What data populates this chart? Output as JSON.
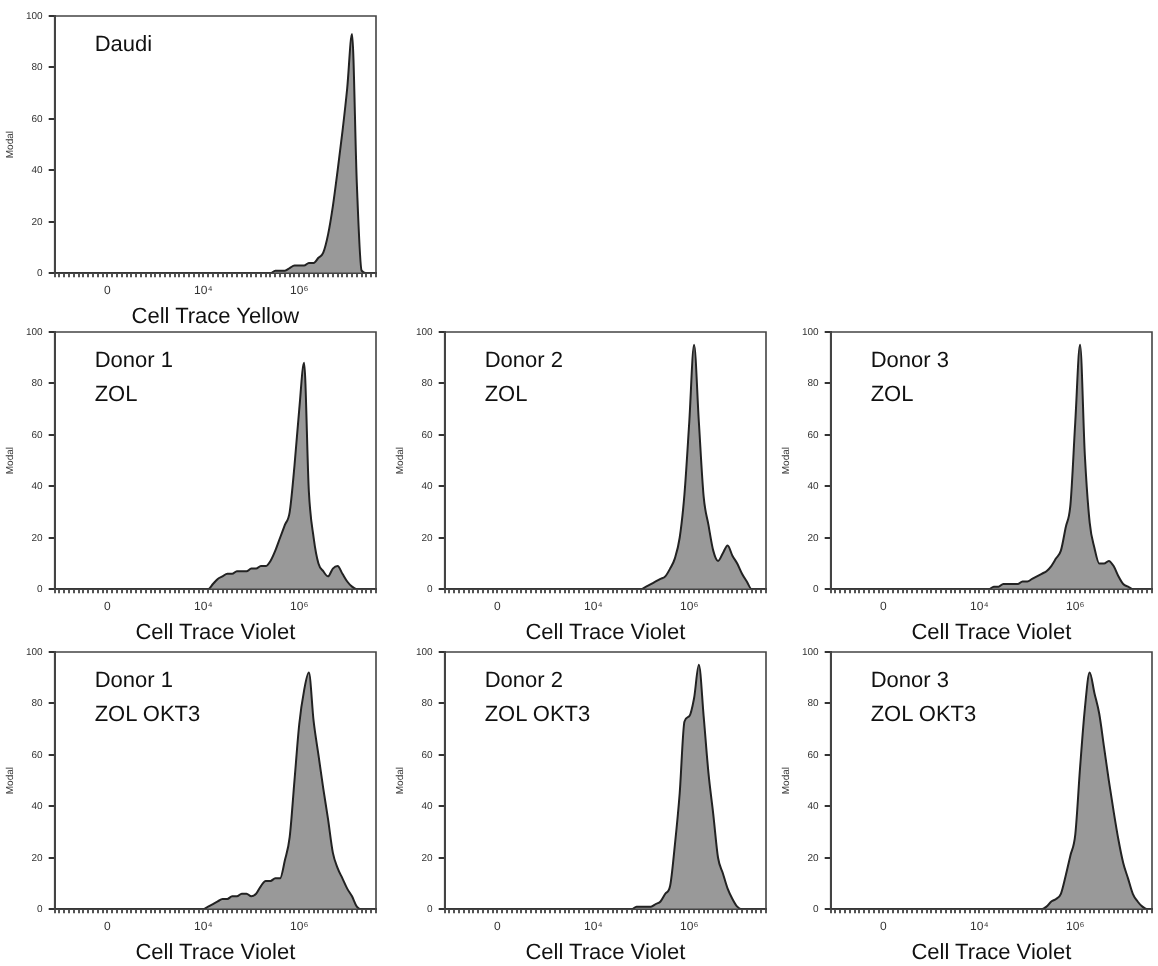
{
  "chart_data": [
    {
      "type": "area",
      "annotations": [
        "Daudi"
      ],
      "xlabel": "Cell Trace Yellow",
      "ylabel": "Modal",
      "ylim": [
        0,
        100
      ],
      "yticks": [
        0,
        20,
        40,
        60,
        80,
        100
      ],
      "color": "#999999",
      "categories": [
        null,
        null,
        null,
        null,
        null,
        null,
        null,
        null,
        null,
        null,
        null,
        "0",
        null,
        null,
        null,
        null,
        null,
        null,
        null,
        null,
        null,
        null,
        null,
        null,
        null,
        null,
        null,
        null,
        null,
        null,
        null,
        "10⁴",
        null,
        null,
        null,
        null,
        null,
        null,
        null,
        null,
        null,
        null,
        null,
        null,
        null,
        null,
        null,
        null,
        null,
        null,
        null,
        "10⁶",
        null,
        null,
        null,
        null,
        null,
        null,
        null,
        null,
        null,
        null,
        null,
        null,
        null,
        null,
        null,
        null
      ],
      "values": [
        0,
        0,
        0,
        0,
        0,
        0,
        0,
        0,
        0,
        0,
        0,
        0,
        0,
        0,
        0,
        0,
        0,
        0,
        0,
        0,
        0,
        0,
        0,
        0,
        0,
        0,
        0,
        0,
        0,
        0,
        0,
        0,
        0,
        0,
        0,
        0,
        0,
        0,
        0,
        0,
        0,
        0,
        0,
        0,
        0,
        0,
        1,
        1,
        1,
        2,
        3,
        3,
        3,
        4,
        4,
        6,
        8,
        15,
        26,
        40,
        55,
        72,
        93,
        35,
        1,
        0,
        0,
        0
      ]
    },
    {
      "type": "area",
      "annotations": [
        "Donor 1",
        "ZOL"
      ],
      "xlabel": "Cell Trace Violet",
      "ylabel": "Modal",
      "ylim": [
        0,
        100
      ],
      "yticks": [
        0,
        20,
        40,
        60,
        80,
        100
      ],
      "color": "#999999",
      "categories": [
        null,
        null,
        null,
        null,
        null,
        null,
        null,
        null,
        null,
        null,
        null,
        "0",
        null,
        null,
        null,
        null,
        null,
        null,
        null,
        null,
        null,
        null,
        null,
        null,
        null,
        null,
        null,
        null,
        null,
        null,
        null,
        "10⁴",
        null,
        null,
        null,
        null,
        null,
        null,
        null,
        null,
        null,
        null,
        null,
        null,
        null,
        null,
        null,
        null,
        null,
        null,
        null,
        "10⁶",
        null,
        null,
        null,
        null,
        null,
        null,
        null,
        null,
        null,
        null,
        null,
        null,
        null,
        null,
        null,
        null
      ],
      "values": [
        0,
        0,
        0,
        0,
        0,
        0,
        0,
        0,
        0,
        0,
        0,
        0,
        0,
        0,
        0,
        0,
        0,
        0,
        0,
        0,
        0,
        0,
        0,
        0,
        0,
        0,
        0,
        0,
        0,
        0,
        0,
        0,
        0,
        2,
        4,
        5,
        6,
        6,
        7,
        7,
        7,
        8,
        8,
        9,
        9,
        11,
        15,
        20,
        25,
        30,
        48,
        70,
        88,
        38,
        20,
        10,
        7,
        5,
        8,
        9,
        6,
        3,
        1,
        0,
        0,
        0,
        0,
        0
      ]
    },
    {
      "type": "area",
      "annotations": [
        "Donor 2",
        "ZOL"
      ],
      "xlabel": "Cell Trace Violet",
      "ylabel": "Modal",
      "ylim": [
        0,
        100
      ],
      "yticks": [
        0,
        20,
        40,
        60,
        80,
        100
      ],
      "color": "#999999",
      "categories": [
        null,
        null,
        null,
        null,
        null,
        null,
        null,
        null,
        null,
        null,
        null,
        "0",
        null,
        null,
        null,
        null,
        null,
        null,
        null,
        null,
        null,
        null,
        null,
        null,
        null,
        null,
        null,
        null,
        null,
        null,
        null,
        "10⁴",
        null,
        null,
        null,
        null,
        null,
        null,
        null,
        null,
        null,
        null,
        null,
        null,
        null,
        null,
        null,
        null,
        null,
        null,
        null,
        "10⁶",
        null,
        null,
        null,
        null,
        null,
        null,
        null,
        null,
        null,
        null,
        null,
        null,
        null,
        null,
        null,
        null
      ],
      "values": [
        0,
        0,
        0,
        0,
        0,
        0,
        0,
        0,
        0,
        0,
        0,
        0,
        0,
        0,
        0,
        0,
        0,
        0,
        0,
        0,
        0,
        0,
        0,
        0,
        0,
        0,
        0,
        0,
        0,
        0,
        0,
        0,
        0,
        0,
        0,
        0,
        0,
        0,
        0,
        0,
        0,
        0,
        1,
        2,
        3,
        4,
        5,
        8,
        12,
        20,
        37,
        65,
        95,
        65,
        36,
        25,
        15,
        11,
        14,
        17,
        13,
        10,
        6,
        3,
        0,
        0,
        0,
        0
      ]
    },
    {
      "type": "area",
      "annotations": [
        "Donor 3",
        "ZOL"
      ],
      "xlabel": "Cell Trace Violet",
      "ylabel": "Modal",
      "ylim": [
        0,
        100
      ],
      "yticks": [
        0,
        20,
        40,
        60,
        80,
        100
      ],
      "color": "#999999",
      "categories": [
        null,
        null,
        null,
        null,
        null,
        null,
        null,
        null,
        null,
        null,
        null,
        "0",
        null,
        null,
        null,
        null,
        null,
        null,
        null,
        null,
        null,
        null,
        null,
        null,
        null,
        null,
        null,
        null,
        null,
        null,
        null,
        "10⁴",
        null,
        null,
        null,
        null,
        null,
        null,
        null,
        null,
        null,
        null,
        null,
        null,
        null,
        null,
        null,
        null,
        null,
        null,
        null,
        "10⁶",
        null,
        null,
        null,
        null,
        null,
        null,
        null,
        null,
        null,
        null,
        null,
        null,
        null,
        null,
        null,
        null
      ],
      "values": [
        0,
        0,
        0,
        0,
        0,
        0,
        0,
        0,
        0,
        0,
        0,
        0,
        0,
        0,
        0,
        0,
        0,
        0,
        0,
        0,
        0,
        0,
        0,
        0,
        0,
        0,
        0,
        0,
        0,
        0,
        0,
        0,
        0,
        0,
        1,
        1,
        2,
        2,
        2,
        2,
        3,
        3,
        4,
        5,
        6,
        7,
        9,
        12,
        15,
        24,
        33,
        65,
        95,
        52,
        26,
        16,
        10,
        10,
        11,
        9,
        5,
        2,
        1,
        0,
        0,
        0,
        0,
        0
      ]
    },
    {
      "type": "area",
      "annotations": [
        "Donor 1",
        "ZOL OKT3"
      ],
      "xlabel": "Cell Trace Violet",
      "ylabel": "Modal",
      "ylim": [
        0,
        100
      ],
      "yticks": [
        0,
        20,
        40,
        60,
        80,
        100
      ],
      "color": "#999999",
      "categories": [
        null,
        null,
        null,
        null,
        null,
        null,
        null,
        null,
        null,
        null,
        null,
        "0",
        null,
        null,
        null,
        null,
        null,
        null,
        null,
        null,
        null,
        null,
        null,
        null,
        null,
        null,
        null,
        null,
        null,
        null,
        null,
        "10⁴",
        null,
        null,
        null,
        null,
        null,
        null,
        null,
        null,
        null,
        null,
        null,
        null,
        null,
        null,
        null,
        null,
        null,
        null,
        null,
        "10⁶",
        null,
        null,
        null,
        null,
        null,
        null,
        null,
        null,
        null,
        null,
        null,
        null,
        null,
        null,
        null,
        null
      ],
      "values": [
        0,
        0,
        0,
        0,
        0,
        0,
        0,
        0,
        0,
        0,
        0,
        0,
        0,
        0,
        0,
        0,
        0,
        0,
        0,
        0,
        0,
        0,
        0,
        0,
        0,
        0,
        0,
        0,
        0,
        0,
        0,
        0,
        1,
        2,
        3,
        4,
        4,
        5,
        5,
        6,
        6,
        5,
        6,
        9,
        11,
        11,
        12,
        12,
        19,
        28,
        50,
        72,
        85,
        92,
        73,
        60,
        47,
        35,
        22,
        16,
        12,
        8,
        5,
        1,
        0,
        0,
        0,
        0
      ]
    },
    {
      "type": "area",
      "annotations": [
        "Donor 2",
        "ZOL OKT3"
      ],
      "xlabel": "Cell Trace Violet",
      "ylabel": "Modal",
      "ylim": [
        0,
        100
      ],
      "yticks": [
        0,
        20,
        40,
        60,
        80,
        100
      ],
      "color": "#999999",
      "categories": [
        null,
        null,
        null,
        null,
        null,
        null,
        null,
        null,
        null,
        null,
        null,
        "0",
        null,
        null,
        null,
        null,
        null,
        null,
        null,
        null,
        null,
        null,
        null,
        null,
        null,
        null,
        null,
        null,
        null,
        null,
        null,
        "10⁴",
        null,
        null,
        null,
        null,
        null,
        null,
        null,
        null,
        null,
        null,
        null,
        null,
        null,
        null,
        null,
        null,
        null,
        null,
        null,
        "10⁶",
        null,
        null,
        null,
        null,
        null,
        null,
        null,
        null,
        null,
        null,
        null,
        null,
        null,
        null,
        null,
        null
      ],
      "values": [
        0,
        0,
        0,
        0,
        0,
        0,
        0,
        0,
        0,
        0,
        0,
        0,
        0,
        0,
        0,
        0,
        0,
        0,
        0,
        0,
        0,
        0,
        0,
        0,
        0,
        0,
        0,
        0,
        0,
        0,
        0,
        0,
        0,
        0,
        0,
        0,
        0,
        0,
        0,
        0,
        1,
        1,
        1,
        1,
        2,
        3,
        6,
        9,
        25,
        45,
        73,
        75,
        82,
        95,
        75,
        53,
        37,
        20,
        14,
        8,
        4,
        1,
        0,
        0,
        0,
        0,
        0,
        0
      ]
    },
    {
      "type": "area",
      "annotations": [
        "Donor 3",
        "ZOL OKT3"
      ],
      "xlabel": "Cell Trace Violet",
      "ylabel": "Modal",
      "ylim": [
        0,
        100
      ],
      "yticks": [
        0,
        20,
        40,
        60,
        80,
        100
      ],
      "color": "#999999",
      "categories": [
        null,
        null,
        null,
        null,
        null,
        null,
        null,
        null,
        null,
        null,
        null,
        "0",
        null,
        null,
        null,
        null,
        null,
        null,
        null,
        null,
        null,
        null,
        null,
        null,
        null,
        null,
        null,
        null,
        null,
        null,
        null,
        "10⁴",
        null,
        null,
        null,
        null,
        null,
        null,
        null,
        null,
        null,
        null,
        null,
        null,
        null,
        null,
        null,
        null,
        null,
        null,
        null,
        "10⁶",
        null,
        null,
        null,
        null,
        null,
        null,
        null,
        null,
        null,
        null,
        null,
        null,
        null,
        null,
        null,
        null
      ],
      "values": [
        0,
        0,
        0,
        0,
        0,
        0,
        0,
        0,
        0,
        0,
        0,
        0,
        0,
        0,
        0,
        0,
        0,
        0,
        0,
        0,
        0,
        0,
        0,
        0,
        0,
        0,
        0,
        0,
        0,
        0,
        0,
        0,
        0,
        0,
        0,
        0,
        0,
        0,
        0,
        0,
        0,
        0,
        0,
        0,
        0,
        1,
        3,
        4,
        6,
        13,
        21,
        29,
        55,
        78,
        92,
        84,
        76,
        63,
        50,
        38,
        27,
        18,
        12,
        6,
        3,
        1,
        0,
        0
      ]
    }
  ]
}
